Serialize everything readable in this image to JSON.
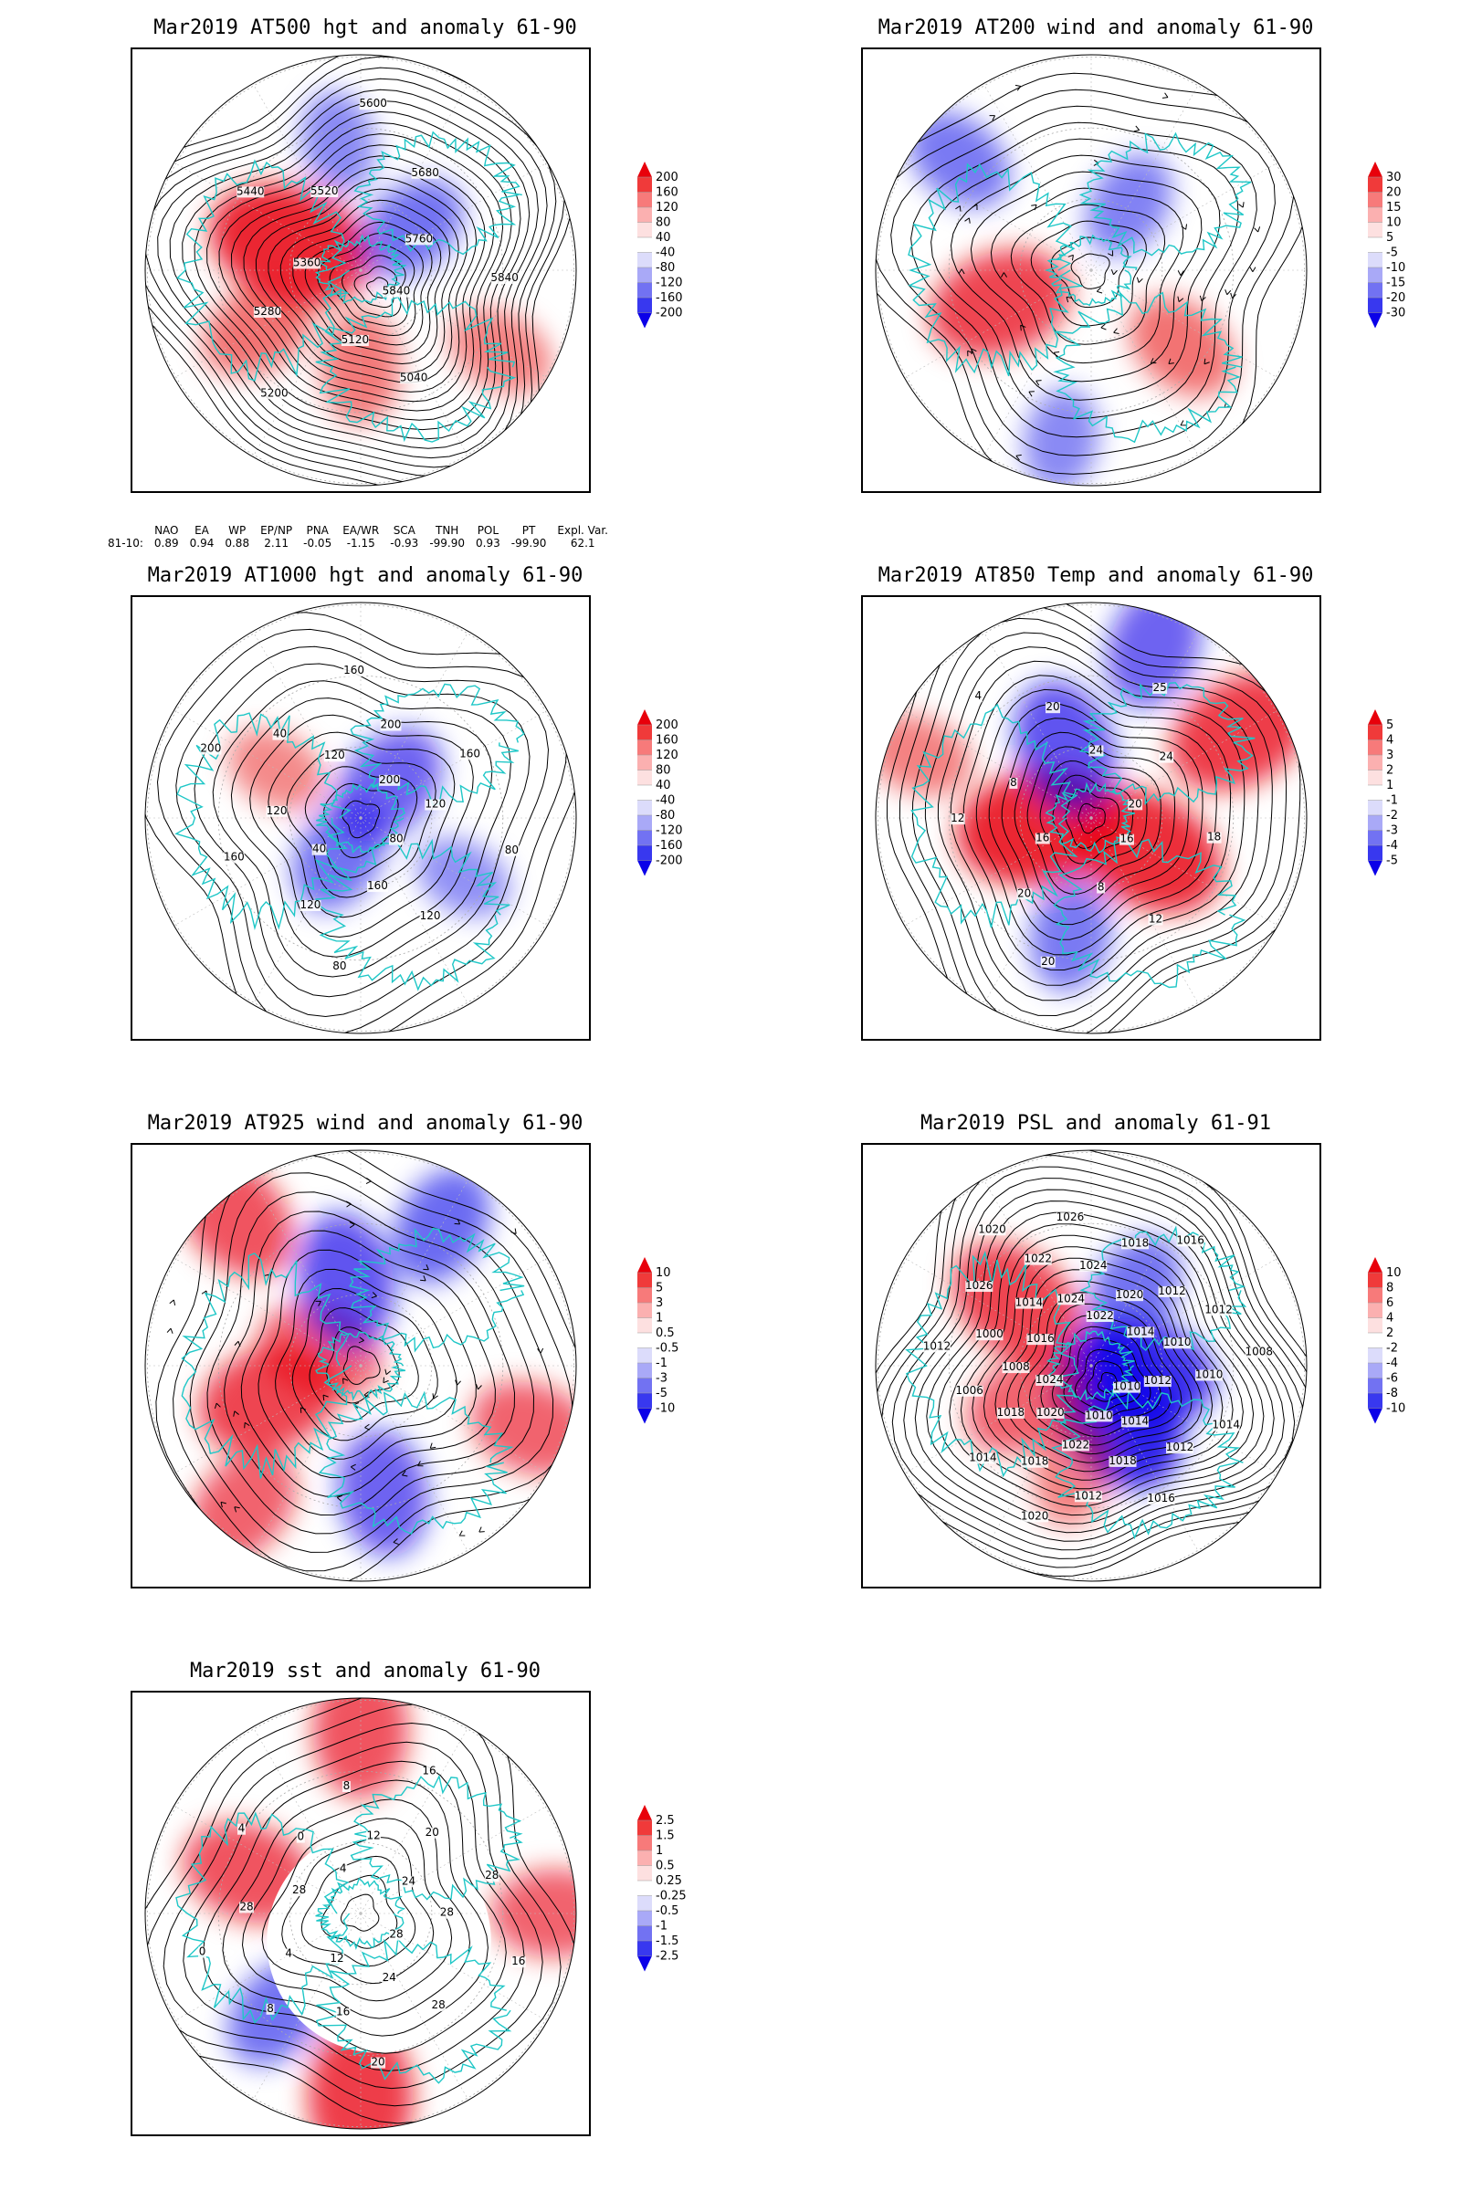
{
  "panels": [
    {
      "id": "at500",
      "title": "Mar2019 AT500 hgt and anomaly 61-90",
      "colorbar": [
        "200",
        "160",
        "120",
        "80",
        "40",
        "-40",
        "-80",
        "-120",
        "-160",
        "-200"
      ],
      "contour_labels": [
        "5840",
        "5040",
        "5120",
        "5200",
        "5280",
        "5360",
        "5440",
        "5520",
        "5600",
        "5680",
        "5760",
        "5840"
      ],
      "anomalies": [
        {
          "lon": 200,
          "r": 0.35,
          "v": 1.0
        },
        {
          "lon": 150,
          "r": 0.55,
          "v": 0.5
        },
        {
          "lon": 90,
          "r": 0.45,
          "v": 0.45
        },
        {
          "lon": 320,
          "r": 0.3,
          "v": -0.5
        },
        {
          "lon": 30,
          "r": 0.75,
          "v": 0.4
        },
        {
          "lon": 260,
          "r": 0.6,
          "v": -0.35
        }
      ]
    },
    {
      "id": "at200",
      "title": "Mar2019 AT200 wind and anomaly 61-90",
      "colorbar": [
        "30",
        "20",
        "15",
        "10",
        "5",
        "-5",
        "-10",
        "-15",
        "-20",
        "-30"
      ],
      "contour_labels": [],
      "anomalies": [
        {
          "lon": 160,
          "r": 0.45,
          "v": 0.8
        },
        {
          "lon": 220,
          "r": 0.8,
          "v": -0.45
        },
        {
          "lon": 40,
          "r": 0.55,
          "v": 0.5
        },
        {
          "lon": 300,
          "r": 0.35,
          "v": -0.4
        },
        {
          "lon": 100,
          "r": 0.8,
          "v": -0.35
        }
      ]
    },
    {
      "id": "at1000",
      "title": "Mar2019 AT1000 hgt and anomaly 61-90",
      "colorbar": [
        "200",
        "160",
        "120",
        "80",
        "40",
        "-40",
        "-80",
        "-120",
        "-160",
        "-200"
      ],
      "contour_labels": [
        "80",
        "120",
        "160",
        "80",
        "120",
        "40",
        "160",
        "120",
        "200",
        "40",
        "120",
        "160",
        "200",
        "200",
        "160",
        "120",
        "80"
      ],
      "anomalies": [
        {
          "lon": 310,
          "r": 0.2,
          "v": -0.6
        },
        {
          "lon": 120,
          "r": 0.2,
          "v": -0.5
        },
        {
          "lon": 210,
          "r": 0.45,
          "v": 0.35
        },
        {
          "lon": 30,
          "r": 0.55,
          "v": -0.3
        }
      ]
    },
    {
      "id": "at850",
      "title": "Mar2019 AT850 Temp and anomaly 61-90",
      "colorbar": [
        "5",
        "4",
        "3",
        "2",
        "1",
        "-1",
        "-2",
        "-3",
        "-4",
        "-5"
      ],
      "contour_labels": [
        "16",
        "12",
        "8",
        "20",
        "20",
        "16",
        "12",
        "8",
        "4",
        "20",
        "24",
        "25",
        "24",
        "20",
        "18"
      ],
      "anomalies": [
        {
          "lon": 170,
          "r": 0.25,
          "v": 1.0
        },
        {
          "lon": 30,
          "r": 0.3,
          "v": 0.95
        },
        {
          "lon": 250,
          "r": 0.35,
          "v": -0.7
        },
        {
          "lon": 330,
          "r": 0.8,
          "v": 0.85
        },
        {
          "lon": 290,
          "r": 0.85,
          "v": -0.6
        },
        {
          "lon": 100,
          "r": 0.55,
          "v": -0.45
        },
        {
          "lon": 200,
          "r": 0.85,
          "v": 0.4
        }
      ]
    },
    {
      "id": "at925",
      "title": "Mar2019 AT925 wind and anomaly 61-90",
      "colorbar": [
        "10",
        "5",
        "3",
        "1",
        "0.5",
        "-0.5",
        "-1",
        "-3",
        "-5",
        "-10"
      ],
      "contour_labels": [],
      "anomalies": [
        {
          "lon": 160,
          "r": 0.45,
          "v": 0.8
        },
        {
          "lon": 200,
          "r": 0.2,
          "v": 0.6
        },
        {
          "lon": 260,
          "r": 0.4,
          "v": -0.7
        },
        {
          "lon": 80,
          "r": 0.6,
          "v": -0.6
        },
        {
          "lon": 20,
          "r": 0.85,
          "v": 0.6
        },
        {
          "lon": 300,
          "r": 0.75,
          "v": -0.55
        },
        {
          "lon": 130,
          "r": 0.85,
          "v": 0.6
        },
        {
          "lon": 230,
          "r": 0.9,
          "v": 0.7
        }
      ]
    },
    {
      "id": "psl",
      "title": "Mar2019 PSL and anomaly 61-91",
      "colorbar": [
        "10",
        "8",
        "6",
        "4",
        "2",
        "-2",
        "-4",
        "-6",
        "-8",
        "-10"
      ],
      "contour_labels": [
        "1010",
        "1012",
        "1014",
        "1016",
        "1018",
        "1010",
        "1012",
        "1022",
        "1020",
        "1018",
        "1020",
        "1014",
        "1018",
        "1024",
        "1006",
        "1008",
        "1012",
        "1000",
        "1016",
        "1026",
        "1014",
        "1020",
        "1022",
        "1024",
        "1026",
        "1024",
        "1022",
        "1018",
        "1020",
        "1016",
        "1012",
        "1014",
        "1012",
        "1010",
        "1008",
        "1010",
        "1012",
        "1014"
      ],
      "anomalies": [
        {
          "lon": 60,
          "r": 0.25,
          "v": -1.0
        },
        {
          "lon": 10,
          "r": 0.22,
          "v": -0.9
        },
        {
          "lon": 220,
          "r": 0.45,
          "v": 0.8
        },
        {
          "lon": 150,
          "r": 0.35,
          "v": 0.6
        },
        {
          "lon": 300,
          "r": 0.4,
          "v": -0.5
        },
        {
          "lon": 100,
          "r": 0.5,
          "v": 0.4
        }
      ]
    },
    {
      "id": "sst",
      "title": "Mar2019 sst and anomaly 61-90",
      "colorbar": [
        "2.5",
        "1.5",
        "1",
        "0.5",
        "0.25",
        "-0.25",
        "-0.5",
        "-1",
        "-1.5",
        "-2.5"
      ],
      "contour_labels": [
        "28",
        "28",
        "24",
        "20",
        "16",
        "12",
        "8",
        "4",
        "0",
        "28",
        "28",
        "4",
        "0",
        "4",
        "8",
        "12",
        "16",
        "20",
        "24",
        "28",
        "28",
        "16"
      ],
      "anomalies": [
        {
          "lon": 90,
          "r": 0.85,
          "v": 0.85
        },
        {
          "lon": 270,
          "r": 0.85,
          "v": 0.7
        },
        {
          "lon": 0,
          "r": 0.9,
          "v": 0.6
        },
        {
          "lon": 130,
          "r": 0.6,
          "v": -0.5
        },
        {
          "lon": 200,
          "r": 0.55,
          "v": 0.7
        }
      ]
    }
  ],
  "indices": {
    "headers": [
      "NAO",
      "EA",
      "WP",
      "EP/NP",
      "PNA",
      "EA/WR",
      "SCA",
      "TNH",
      "POL",
      "PT",
      "Expl. Var."
    ],
    "row_label": "81-10:",
    "values": [
      "0.89",
      "0.94",
      "0.88",
      "2.11",
      "-0.05",
      "-1.15",
      "-0.93",
      "-99.90",
      "0.93",
      "-99.90",
      "62.1"
    ]
  }
}
